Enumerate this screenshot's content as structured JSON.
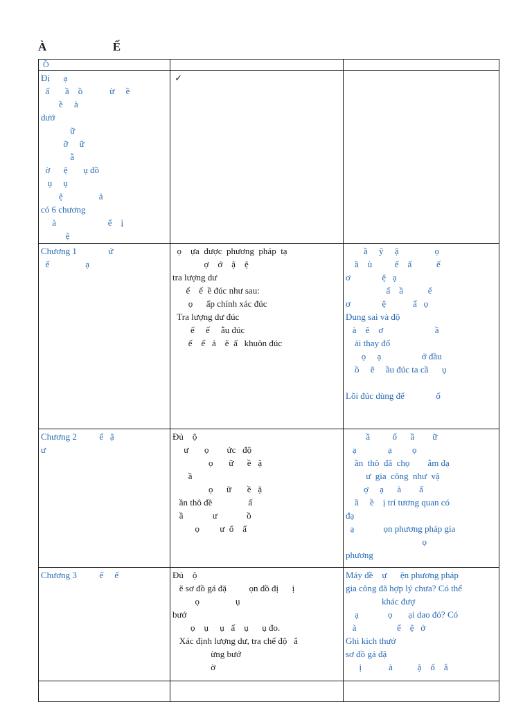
{
  "colors": {
    "accent_blue": "#2368b4",
    "text_black": "#1a1a1a",
    "border": "#1a1a1a"
  },
  "page": {
    "title": "À                    Ế"
  },
  "table": {
    "header_row": {
      "col1": " Ồ",
      "col2": "",
      "col3": ""
    },
    "rows": [
      {
        "col1_lines": [
          "Đị      ạ",
          "  ấ       ầ    ồ            ừ     ề",
          "        ề     à",
          "dướ",
          "             ữ",
          "          ỡ     ữ",
          "             ẫ",
          "  ờ      ệ       ụ đồ",
          "   ụ     ụ",
          "        ệ                ả",
          "có 6 chương",
          "     à                       ế    ị",
          "           ệ"
        ],
        "col2_lines": [
          " ✓"
        ],
        "col3_lines": []
      },
      {
        "col1_lines": [
          "Chương 1              ứ",
          "  ế                ạ"
        ],
        "col2_lines": [
          "  ọ    ựa  được  phương  pháp  tạ",
          "              ợ    ớ    ậ    ệ",
          "tra lượng dư",
          "      ế    ế  ề đúc như sau:",
          "       ọ      ấp chính xác đúc",
          "  Tra lượng dư đúc",
          "        ế     ế     ẫu đúc",
          "       ế    ế   ả    ẽ  ấ   khuôn đúc"
        ],
        "col3_lines": [
          "        ầ     ỹ     ậ                ọ",
          "    ầ    ù          ế    ấ           ế",
          "ơ              ệ   ạ",
          "                  ấ    ầ           ế",
          "ơ              ệ            ấ   ọ",
          "Dung sai và độ",
          "   à    ẽ    ơ                       ầ",
          "    ải thay đổ",
          "       ọ     ạ                  ở đầu",
          "    ồ     ẽ     ầu đúc ta cầ      ụ",
          " ",
          "Lõi đúc dùng để              ố"
        ]
      },
      {
        "col1_lines": [
          "Chương 2          ế   ậ",
          "ư"
        ],
        "col2_lines": [
          "Đủ    ộ",
          "     ư       ọ        ức   độ",
          "                ọ       ữ      ề   ặ",
          "       ầ",
          "                ọ      ữ       ề   ặ",
          "   ần thô đề                ấ",
          "   ầ             ư             ồ",
          "          ọ         ư  ố    ấ"
        ],
        "col3_lines": [
          "         ầ          ố      ầ        ữ",
          "   ạ              ạ         ọ",
          "    ần  thô  đã  chọ        ằm đạ",
          "         ư  gia  công  như  vậ",
          "        ợ     ạ      à        ấ",
          "    ầ     ề    ị trí tương quan có",
          "đạ",
          "  ạ             ọn phương pháp gia",
          "                                  ọ",
          "phương"
        ]
      },
      {
        "col1_lines": [
          "Chương 3          ế     ế"
        ],
        "col2_lines": [
          "Đủ    ộ",
          "   ẽ sơ đồ gá đặ          ọn đồ đị      ị",
          "          ọ                ụ",
          "bướ",
          "        ọ    ụ     ụ   ấ    ụ      ụ đo.",
          "   Xác định lượng dư, tra chế độ   ắ",
          "                 ừng bướ",
          "                 ờ"
        ],
        "col3_lines": [
          "Máy đề    ự      ện phương pháp",
          "gia công đã hợp lý chưa? Có thể",
          "                khác đượ",
          "    ạ             ọ       ại dao đó? Có",
          "   à                  ế    ệ   ớ",
          "Ghi kich thướ",
          "sơ đồ gá đặ",
          "      ị            à           ậ    ố    ắ"
        ]
      }
    ],
    "bottom_row": {
      "col1": "",
      "col2": "",
      "col3": ""
    }
  }
}
